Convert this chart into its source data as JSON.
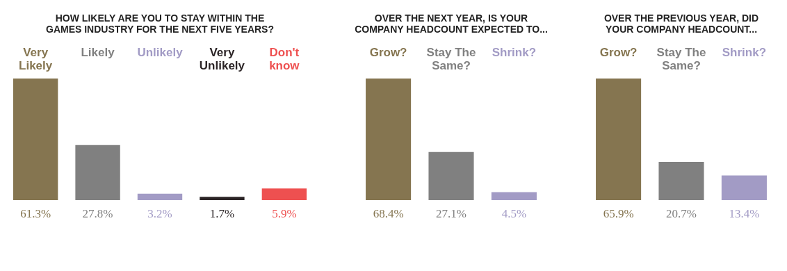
{
  "chart_data": [
    {
      "type": "bar",
      "title": "HOW LIKELY ARE YOU TO STAY WITHIN THE\nGAMES INDUSTRY FOR THE NEXT FIVE YEARS?",
      "categories": [
        "Very\nLikely",
        "Likely",
        "Unlikely",
        "Very\nUnlikely",
        "Don't\nknow"
      ],
      "values": [
        61.3,
        27.8,
        3.2,
        1.7,
        5.9
      ],
      "colors": [
        "#857550",
        "#808080",
        "#a29bc5",
        "#2b2426",
        "#ee5050"
      ],
      "value_labels": [
        "61.3%",
        "27.8%",
        "3.2%",
        "1.7%",
        "5.9%"
      ],
      "tick_labels": "x",
      "grid": false
    },
    {
      "type": "bar",
      "title": "OVER THE NEXT YEAR, IS YOUR\nCOMPANY HEADCOUNT EXPECTED TO...",
      "categories": [
        "Grow?",
        "Stay The\nSame?",
        "Shrink?"
      ],
      "values": [
        68.4,
        27.1,
        4.5
      ],
      "colors": [
        "#857550",
        "#808080",
        "#a29bc5"
      ],
      "value_labels": [
        "68.4%",
        "27.1%",
        "4.5%"
      ],
      "tick_labels": "x",
      "grid": false
    },
    {
      "type": "bar",
      "title": "OVER THE PREVIOUS YEAR, DID\nYOUR COMPANY HEADCOUNT...",
      "categories": [
        "Grow?",
        "Stay The\nSame?",
        "Shrink?"
      ],
      "values": [
        65.9,
        20.7,
        13.4
      ],
      "colors": [
        "#857550",
        "#808080",
        "#a29bc5"
      ],
      "value_labels": [
        "65.9%",
        "20.7%",
        "13.4%"
      ],
      "tick_labels": "x",
      "grid": false
    }
  ]
}
